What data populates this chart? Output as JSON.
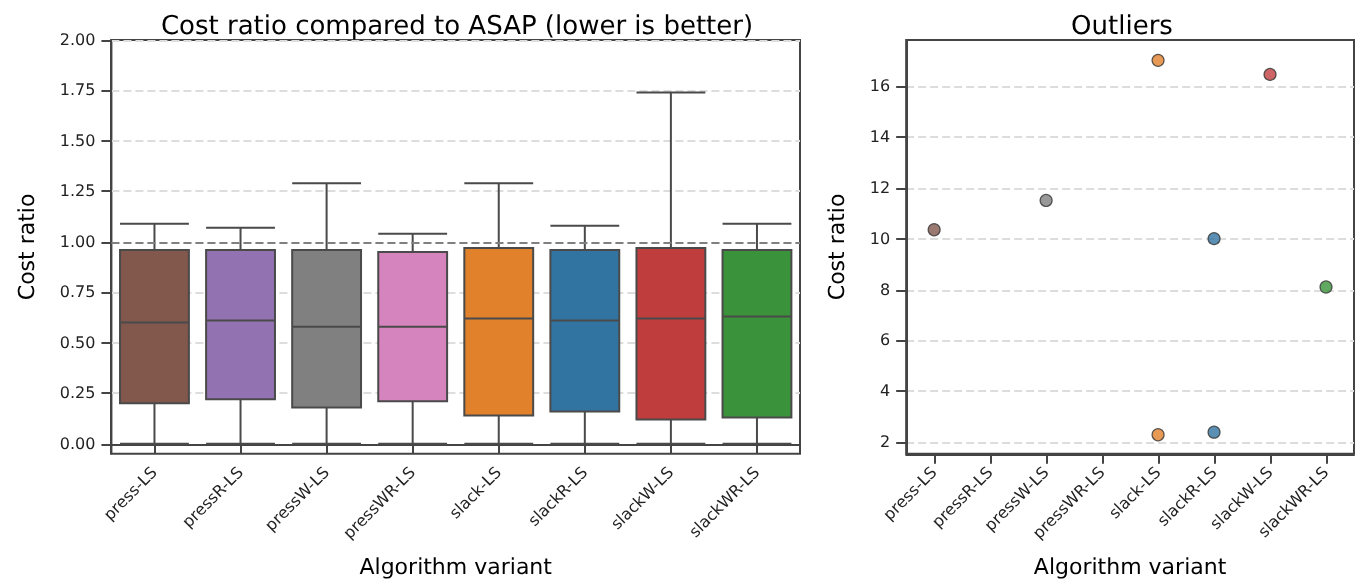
{
  "chart_data": [
    {
      "type": "box",
      "title": "Cost ratio compared to ASAP (lower is better)",
      "xlabel": "Algorithm variant",
      "ylabel": "Cost ratio",
      "categories": [
        "press-LS",
        "pressR-LS",
        "pressW-LS",
        "pressWR-LS",
        "slack-LS",
        "slackR-LS",
        "slackW-LS",
        "slackWR-LS"
      ],
      "colors": [
        "#82574c",
        "#9372b2",
        "#808080",
        "#d684bd",
        "#e1812c",
        "#3274a1",
        "#c03d3e",
        "#3a923a"
      ],
      "boxes": [
        {
          "low": 0,
          "q1": 0.2,
          "median": 0.6,
          "q3": 0.96,
          "high": 1.09
        },
        {
          "low": 0,
          "q1": 0.22,
          "median": 0.61,
          "q3": 0.96,
          "high": 1.07
        },
        {
          "low": 0,
          "q1": 0.18,
          "median": 0.58,
          "q3": 0.96,
          "high": 1.29
        },
        {
          "low": 0,
          "q1": 0.21,
          "median": 0.58,
          "q3": 0.95,
          "high": 1.04
        },
        {
          "low": 0,
          "q1": 0.14,
          "median": 0.62,
          "q3": 0.97,
          "high": 1.29
        },
        {
          "low": 0,
          "q1": 0.16,
          "median": 0.61,
          "q3": 0.96,
          "high": 1.08
        },
        {
          "low": 0,
          "q1": 0.12,
          "median": 0.62,
          "q3": 0.97,
          "high": 1.74
        },
        {
          "low": 0,
          "q1": 0.13,
          "median": 0.63,
          "q3": 0.96,
          "high": 1.09
        }
      ],
      "ylim": [
        -0.05,
        2.0
      ],
      "yticks": [
        {
          "value": 0,
          "label": "0.00"
        },
        {
          "value": 0.25,
          "label": "0.25"
        },
        {
          "value": 0.5,
          "label": "0.50"
        },
        {
          "value": 0.75,
          "label": "0.75"
        },
        {
          "value": 1,
          "label": "1.00"
        },
        {
          "value": 1.25,
          "label": "1.25"
        },
        {
          "value": 1.5,
          "label": "1.50"
        },
        {
          "value": 1.75,
          "label": "1.75"
        },
        {
          "value": 2,
          "label": "2.00"
        }
      ],
      "grid": "y",
      "ref_lines": [
        {
          "axis": "y",
          "value": 1,
          "color": "#808080",
          "line_style": "dashed"
        }
      ]
    },
    {
      "type": "scatter",
      "title": "Outliers",
      "xlabel": "Algorithm variant",
      "ylabel": "Cost ratio",
      "categories": [
        "press-LS",
        "pressR-LS",
        "pressW-LS",
        "pressWR-LS",
        "slack-LS",
        "slackR-LS",
        "slackW-LS",
        "slackWR-LS"
      ],
      "series": [
        {
          "color": "#82574c",
          "x": [
            "press-LS"
          ],
          "values": [
            10.35
          ]
        },
        {
          "color": "#808080",
          "x": [
            "pressW-LS"
          ],
          "values": [
            11.5
          ]
        },
        {
          "color": "#e1812c",
          "x": [
            "slack-LS",
            "slack-LS"
          ],
          "values": [
            17.0,
            2.3
          ]
        },
        {
          "color": "#3274a1",
          "x": [
            "slackR-LS",
            "slackR-LS"
          ],
          "values": [
            10.0,
            2.4
          ]
        },
        {
          "color": "#c03d3e",
          "x": [
            "slackW-LS"
          ],
          "values": [
            16.45
          ]
        },
        {
          "color": "#3a923a",
          "x": [
            "slackWR-LS"
          ],
          "values": [
            8.1
          ]
        }
      ],
      "marker": "circle",
      "ylim": [
        1.55,
        17.8
      ],
      "yticks": [
        2,
        4,
        6,
        8,
        10,
        12,
        14,
        16
      ],
      "grid": "y"
    }
  ]
}
